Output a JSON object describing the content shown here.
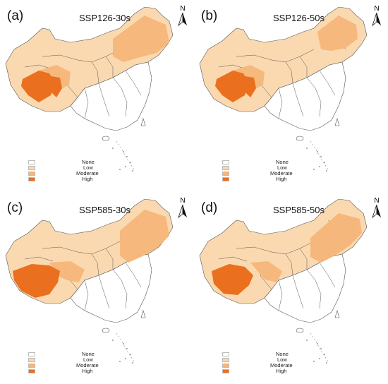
{
  "legend": {
    "items": [
      {
        "label": "None",
        "color": "#ffffff"
      },
      {
        "label": "Low",
        "color": "#fad9b0"
      },
      {
        "label": "Moderate",
        "color": "#f6b67a"
      },
      {
        "label": "High",
        "color": "#ea6f1f"
      }
    ]
  },
  "panels": [
    {
      "label": "(a)",
      "title": "SSP126-30s"
    },
    {
      "label": "(b)",
      "title": "SSP126-50s"
    },
    {
      "label": "(c)",
      "title": "SSP585-30s"
    },
    {
      "label": "(d)",
      "title": "SSP585-50s"
    }
  ],
  "north_arrow": {
    "letter": "N"
  },
  "colors": {
    "none": "#ffffff",
    "low": "#fad9b0",
    "moderate": "#f6b67a",
    "high": "#ea6f1f",
    "border": "#555555"
  }
}
